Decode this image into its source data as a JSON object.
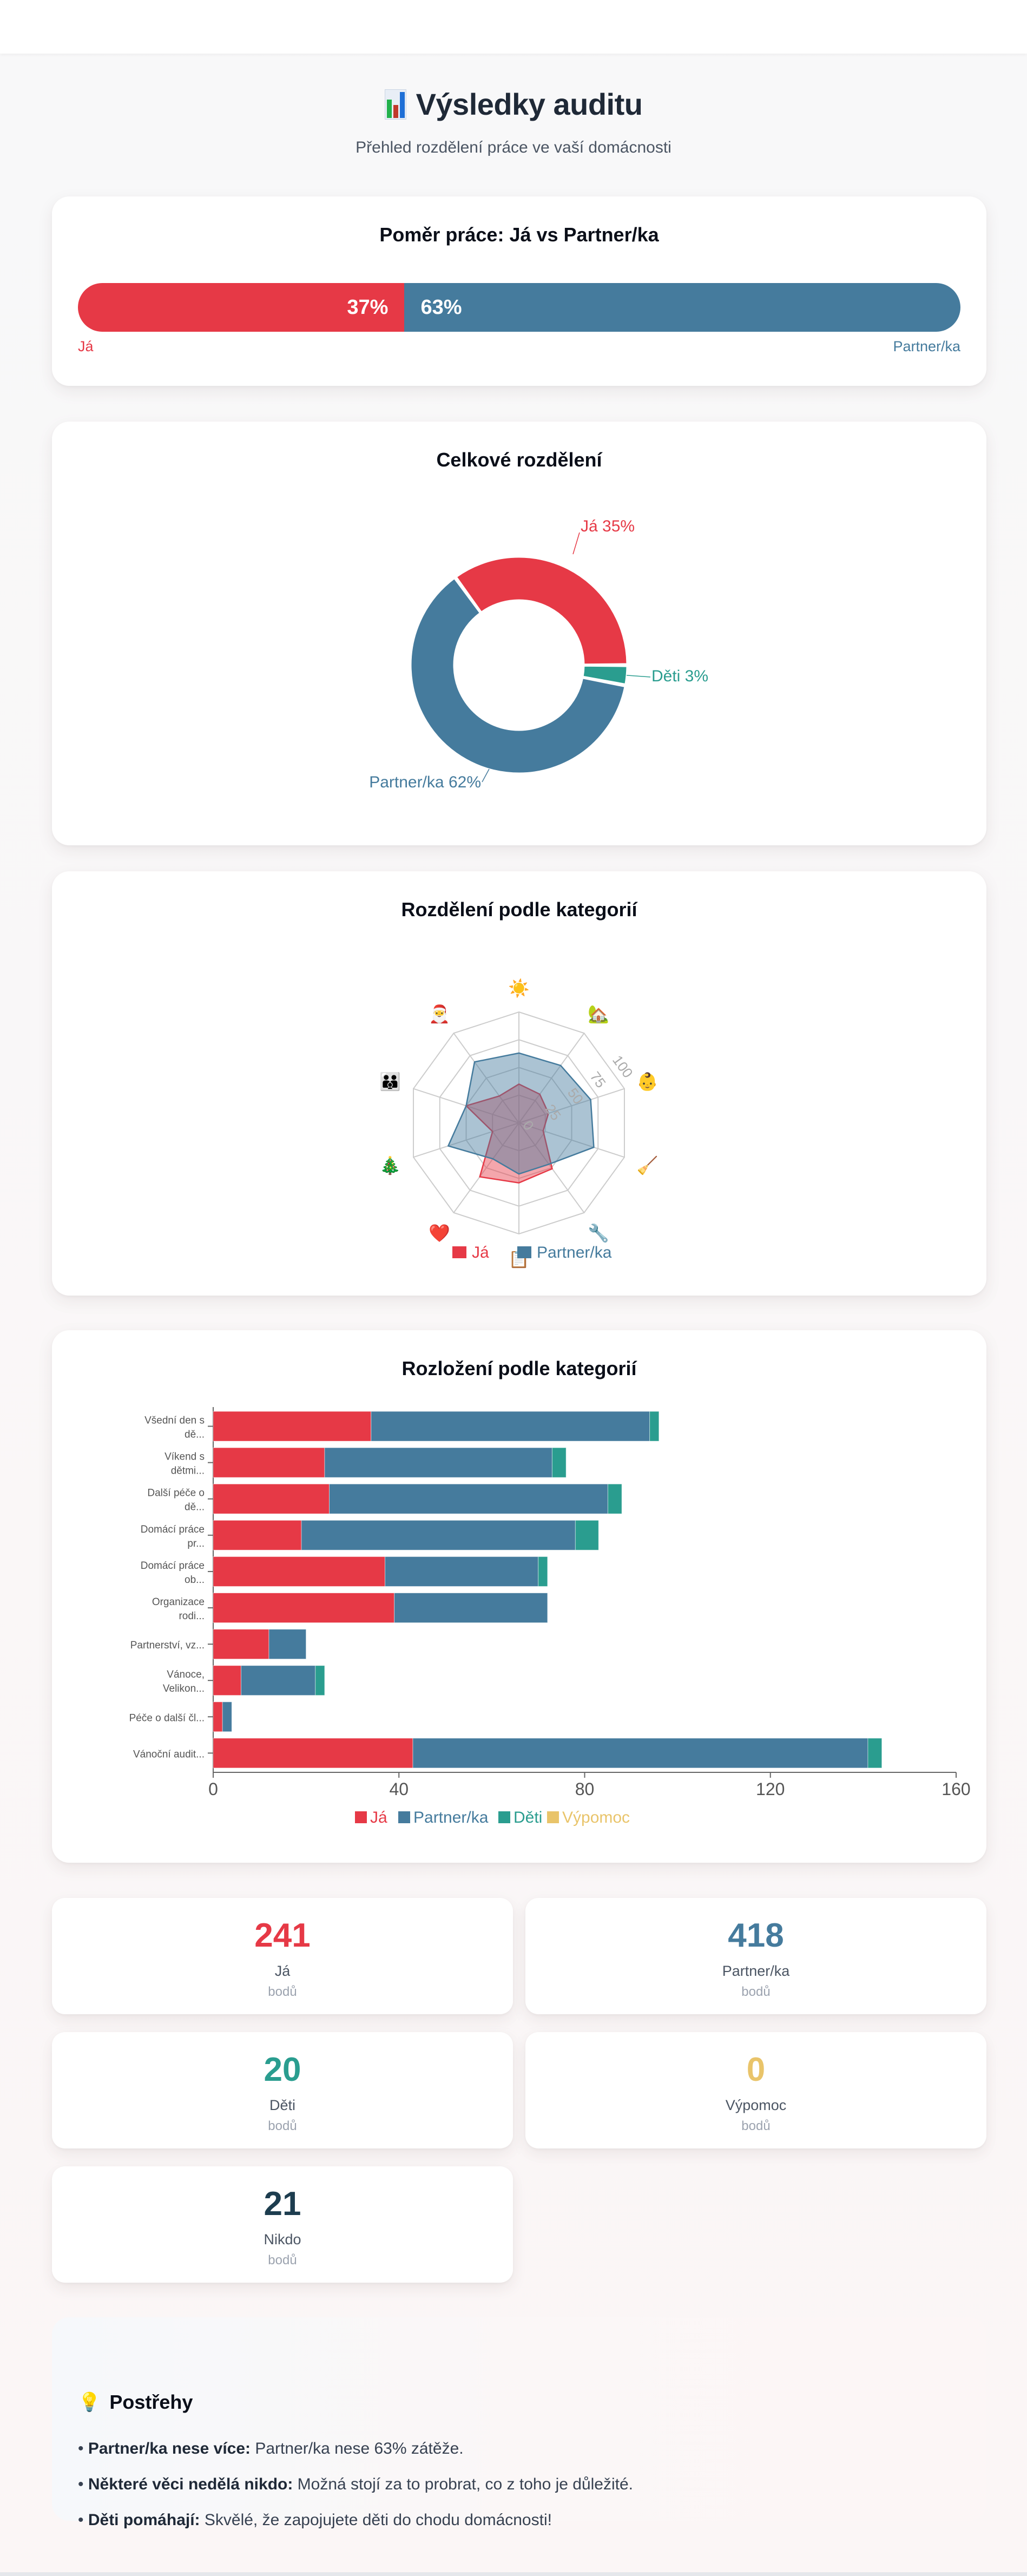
{
  "header": {
    "title": "Výsledky auditu",
    "title_icon": "bar-chart-icon",
    "subtitle": "Přehled rozdělení práce ve vaší domácnosti"
  },
  "colors": {
    "me": "#e63946",
    "partner": "#457b9d",
    "kids": "#2a9d8f",
    "help": "#e9c46a",
    "nobody": "#1d3d4f"
  },
  "ratio": {
    "title": "Poměr práce: Já vs Partner/ka",
    "me_label": "Já",
    "partner_label": "Partner/ka",
    "me_percent": 37,
    "partner_percent": 63,
    "me_text": "37%",
    "partner_text": "63%"
  },
  "chart_data": [
    {
      "type": "pie",
      "title": "Celkové rozdělení",
      "donut": true,
      "slices": [
        {
          "label": "Já",
          "value": 35,
          "text": "Já 35%"
        },
        {
          "label": "Děti",
          "value": 3,
          "text": "Děti 3%"
        },
        {
          "label": "Partner/ka",
          "value": 62,
          "text": "Partner/ka 62%"
        }
      ]
    },
    {
      "type": "radar",
      "title": "Rozdělení podle kategorií",
      "axes": [
        "☀️",
        "🏡",
        "👶",
        "🧹",
        "🔧",
        "📋",
        "❤️",
        "🎄",
        "👪",
        "🎅"
      ],
      "axis_names": [
        "sun",
        "house-garden",
        "baby",
        "broom",
        "wrench",
        "clipboard",
        "heart",
        "christmas-tree",
        "family",
        "santa"
      ],
      "range": [
        0,
        100
      ],
      "ticks": [
        "0",
        "25",
        "50",
        "75",
        "100"
      ],
      "series": [
        {
          "name": "Já",
          "values": [
            35,
            32,
            28,
            23,
            51,
            54,
            60,
            25,
            50,
            30
          ]
        },
        {
          "name": "Partner/ka",
          "values": [
            63,
            64,
            68,
            71,
            46,
            46,
            40,
            67,
            50,
            68
          ]
        }
      ],
      "legend": "bottom"
    },
    {
      "type": "bar",
      "orientation": "horizontal",
      "stacked": true,
      "title": "Rozložení podle kategorií",
      "categories": [
        "Všední den s dě...",
        "Víkend s dětmi...",
        "Další péče o dě...",
        "Domácí práce pr...",
        "Domácí práce ob...",
        "Organizace rodi...",
        "Partnerství, vz...",
        "Vánoce, Velikon...",
        "Péče o další čl...",
        "Vánoční audit..."
      ],
      "series": [
        {
          "name": "Já",
          "values": [
            34,
            24,
            25,
            19,
            37,
            39,
            12,
            6,
            2,
            43
          ]
        },
        {
          "name": "Partner/ka",
          "values": [
            60,
            49,
            60,
            59,
            33,
            33,
            8,
            16,
            2,
            98
          ]
        },
        {
          "name": "Děti",
          "values": [
            2,
            3,
            3,
            5,
            2,
            0,
            0,
            2,
            0,
            3
          ]
        },
        {
          "name": "Výpomoc",
          "values": [
            0,
            0,
            0,
            0,
            0,
            0,
            0,
            0,
            0,
            0
          ]
        }
      ],
      "xlim": [
        0,
        160
      ],
      "xticks": [
        "0",
        "40",
        "80",
        "120",
        "160"
      ],
      "legend": "bottom"
    }
  ],
  "stats": [
    {
      "value": "241",
      "label": "Já",
      "unit": "bodů",
      "color_key": "me"
    },
    {
      "value": "418",
      "label": "Partner/ka",
      "unit": "bodů",
      "color_key": "partner"
    },
    {
      "value": "20",
      "label": "Děti",
      "unit": "bodů",
      "color_key": "kids"
    },
    {
      "value": "0",
      "label": "Výpomoc",
      "unit": "bodů",
      "color_key": "help"
    },
    {
      "value": "21",
      "label": "Nikdo",
      "unit": "bodů",
      "color_key": "nobody"
    }
  ],
  "insights": {
    "title": "Postřehy",
    "icon": "lightbulb-icon",
    "items": [
      {
        "bold": "Partner/ka nese více:",
        "text": " Partner/ka nese 63% zátěže."
      },
      {
        "bold": "Některé věci nedělá nikdo:",
        "text": " Možná stojí za to probrat, co z toho je důležité."
      },
      {
        "bold": "Děti pomáhají:",
        "text": " Skvělé, že zapojujete děti do chodu domácnosti!"
      }
    ]
  }
}
